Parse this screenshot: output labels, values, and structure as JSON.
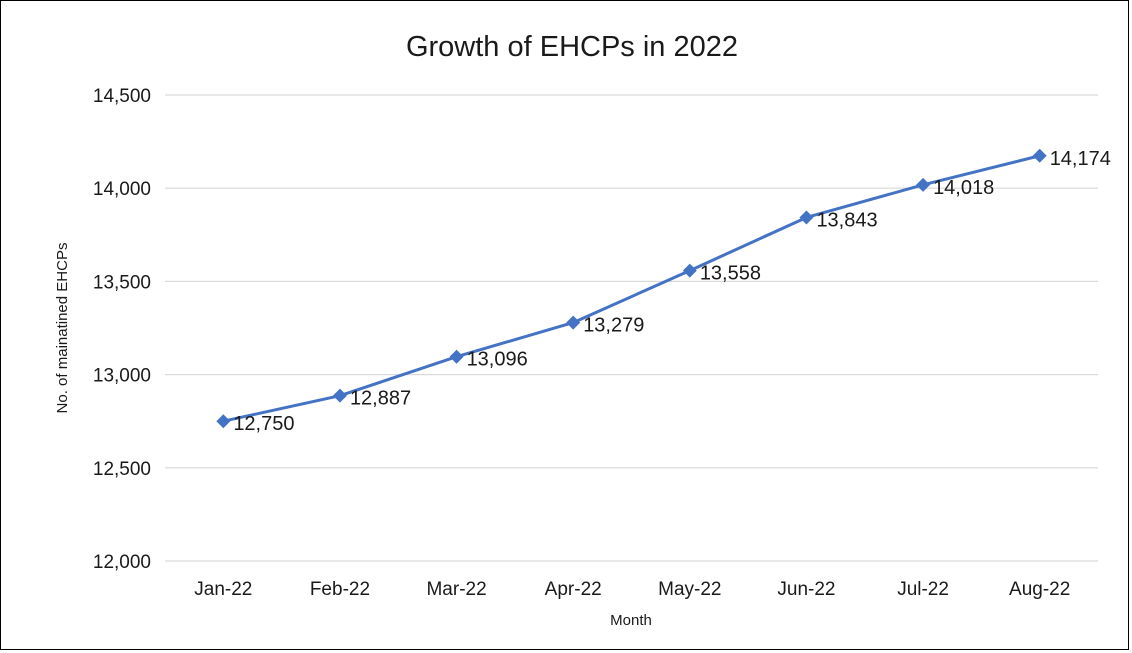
{
  "chart_data": {
    "type": "line",
    "title": "Growth of EHCPs in 2022",
    "xlabel": "Month",
    "ylabel": "No. of mainatined EHCPs",
    "categories": [
      "Jan-22",
      "Feb-22",
      "Mar-22",
      "Apr-22",
      "May-22",
      "Jun-22",
      "Jul-22",
      "Aug-22"
    ],
    "series": [
      {
        "values": [
          12750,
          12887,
          13096,
          13279,
          13558,
          13843,
          14018,
          14174
        ],
        "data_labels": [
          "12,750",
          "12,887",
          "13,096",
          "13,279",
          "13,558",
          "13,843",
          "14,018",
          "14,174"
        ]
      }
    ],
    "ylim": [
      12000,
      14500
    ],
    "yticks": [
      12000,
      12500,
      13000,
      13500,
      14000,
      14500
    ],
    "ytick_labels": [
      "12,000",
      "12,500",
      "13,000",
      "13,500",
      "14,000",
      "14,500"
    ],
    "grid": "horizontal",
    "marker": "diamond",
    "colors": {
      "series": "#4472c4",
      "grid": "#d9d9d9",
      "text": "#1a1a1a"
    }
  }
}
